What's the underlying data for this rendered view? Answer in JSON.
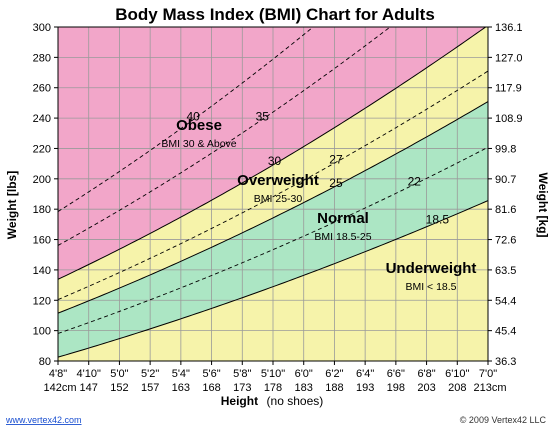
{
  "chart_data": {
    "type": "area",
    "title": "Body Mass Index (BMI) Chart for Adults",
    "xlabel": "Height",
    "xlabel_note": "(no shoes)",
    "ylabel_left": "Weight [lbs]",
    "ylabel_right": "Weight [kg]",
    "x_range_inches": [
      56,
      84
    ],
    "ylim": [
      80,
      300
    ],
    "grid": true,
    "x_ticks": [
      {
        "in": 56,
        "ft": "4'8\"",
        "cm": "142cm"
      },
      {
        "in": 58,
        "ft": "4'10\"",
        "cm": "147"
      },
      {
        "in": 60,
        "ft": "5'0\"",
        "cm": "152"
      },
      {
        "in": 62,
        "ft": "5'2\"",
        "cm": "157"
      },
      {
        "in": 64,
        "ft": "5'4\"",
        "cm": "163"
      },
      {
        "in": 66,
        "ft": "5'6\"",
        "cm": "168"
      },
      {
        "in": 68,
        "ft": "5'8\"",
        "cm": "173"
      },
      {
        "in": 70,
        "ft": "5'10\"",
        "cm": "178"
      },
      {
        "in": 72,
        "ft": "6'0\"",
        "cm": "183"
      },
      {
        "in": 74,
        "ft": "6'2\"",
        "cm": "188"
      },
      {
        "in": 76,
        "ft": "6'4\"",
        "cm": "193"
      },
      {
        "in": 78,
        "ft": "6'6\"",
        "cm": "198"
      },
      {
        "in": 80,
        "ft": "6'8\"",
        "cm": "203"
      },
      {
        "in": 82,
        "ft": "6'10\"",
        "cm": "208"
      },
      {
        "in": 84,
        "ft": "7'0\"",
        "cm": "213cm"
      }
    ],
    "y_ticks_left": [
      80,
      100,
      120,
      140,
      160,
      180,
      200,
      220,
      240,
      260,
      280,
      300
    ],
    "y_ticks_right": [
      "36.3",
      "45.4",
      "54.4",
      "63.5",
      "72.6",
      "81.6",
      "90.7",
      "99.8",
      "108.9",
      "117.9",
      "127.0",
      "136.1"
    ],
    "bmi_formula": "weight_lbs = bmi * inches^2 / 703",
    "boundary_lines_bmi": [
      18.5,
      25,
      30
    ],
    "dashed_lines_bmi": [
      22,
      27,
      35,
      40
    ],
    "regions": [
      {
        "name": "Obese",
        "label": "Obese",
        "range": "BMI 30 & Above",
        "color": "#f2a6c9"
      },
      {
        "name": "Overweight",
        "label": "Overweight",
        "range": "BMI 25-30",
        "color": "#f6f3aa"
      },
      {
        "name": "Normal",
        "label": "Normal",
        "range": "BMI 18.5-25",
        "color": "#ace6c4"
      },
      {
        "name": "Underweight",
        "label": "Underweight",
        "range": "BMI < 18.5",
        "color": "#f6f3aa"
      }
    ],
    "line_labels": [
      {
        "text": "40",
        "bmi": 40
      },
      {
        "text": "35",
        "bmi": 35
      },
      {
        "text": "30",
        "bmi": 30
      },
      {
        "text": "27",
        "bmi": 27
      },
      {
        "text": "25",
        "bmi": 25
      },
      {
        "text": "22",
        "bmi": 22
      },
      {
        "text": "18.5",
        "bmi": 18.5
      }
    ]
  },
  "footer": {
    "link": "www.vertex42.com",
    "copyright": "© 2009 Vertex42 LLC"
  },
  "colors": {
    "obese": "#f2a6c9",
    "overweight": "#f6f3aa",
    "normal": "#ace6c4",
    "underweight": "#f6f3aa",
    "grid": "#9a9a9a",
    "link": "#1a4fd0"
  }
}
